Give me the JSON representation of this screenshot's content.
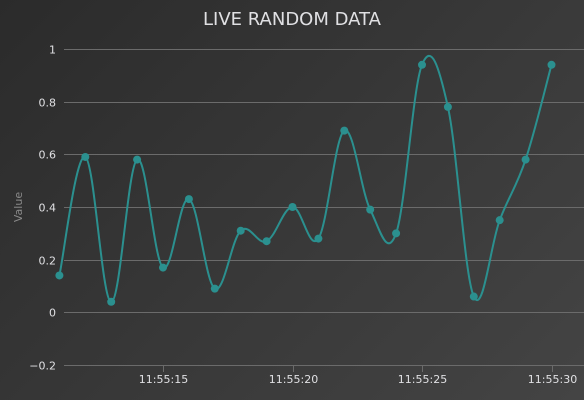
{
  "chart_data": {
    "type": "line",
    "title": "LIVE RANDOM DATA",
    "xlabel": "",
    "ylabel": "Value",
    "ylim": [
      -0.2,
      1
    ],
    "y_ticks": [
      "−0.2",
      "0",
      "0.2",
      "0.4",
      "0.6",
      "0.8",
      "1"
    ],
    "x_ticks": [
      "11:55:15",
      "11:55:20",
      "11:55:25",
      "11:55:30"
    ],
    "grid": true,
    "colors": {
      "series": "#2b908f",
      "grid": "#6b6b6b",
      "text": "#e0e0e3",
      "background": "#2b2b2b"
    },
    "series": [
      {
        "x": [
          "11:55:11",
          "11:55:12",
          "11:55:13",
          "11:55:14",
          "11:55:15",
          "11:55:16",
          "11:55:17",
          "11:55:18",
          "11:55:19",
          "11:55:20",
          "11:55:21",
          "11:55:22",
          "11:55:23",
          "11:55:24",
          "11:55:25",
          "11:55:26",
          "11:55:27",
          "11:55:28",
          "11:55:29",
          "11:55:30"
        ],
        "values": [
          0.14,
          0.59,
          0.04,
          0.58,
          0.17,
          0.43,
          0.09,
          0.31,
          0.27,
          0.4,
          0.28,
          0.69,
          0.39,
          0.3,
          0.94,
          0.78,
          0.06,
          0.35,
          0.58,
          0.94
        ]
      }
    ]
  }
}
